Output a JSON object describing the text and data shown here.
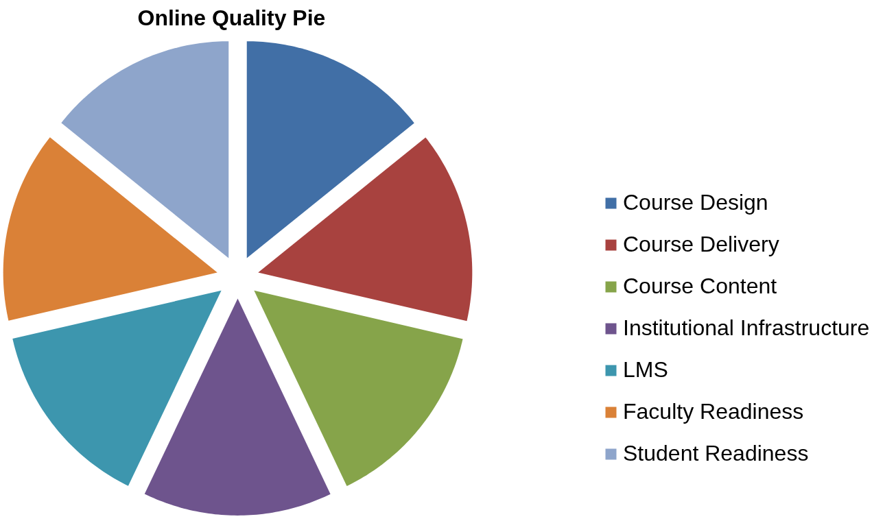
{
  "chart_data": {
    "type": "pie",
    "title": "Online Quality Pie",
    "categories": [
      "Course Design",
      "Course Delivery",
      "Course Content",
      "Institutional Infrastructure",
      "LMS",
      "Faculty Readiness",
      "Student Readiness"
    ],
    "values": [
      14.29,
      14.29,
      14.29,
      14.29,
      14.28,
      14.28,
      14.28
    ],
    "colors": [
      "#416fa6",
      "#a8423f",
      "#86a44a",
      "#6e548d",
      "#3d96ae",
      "#da8137",
      "#8ea5cb"
    ],
    "legend": "right"
  }
}
